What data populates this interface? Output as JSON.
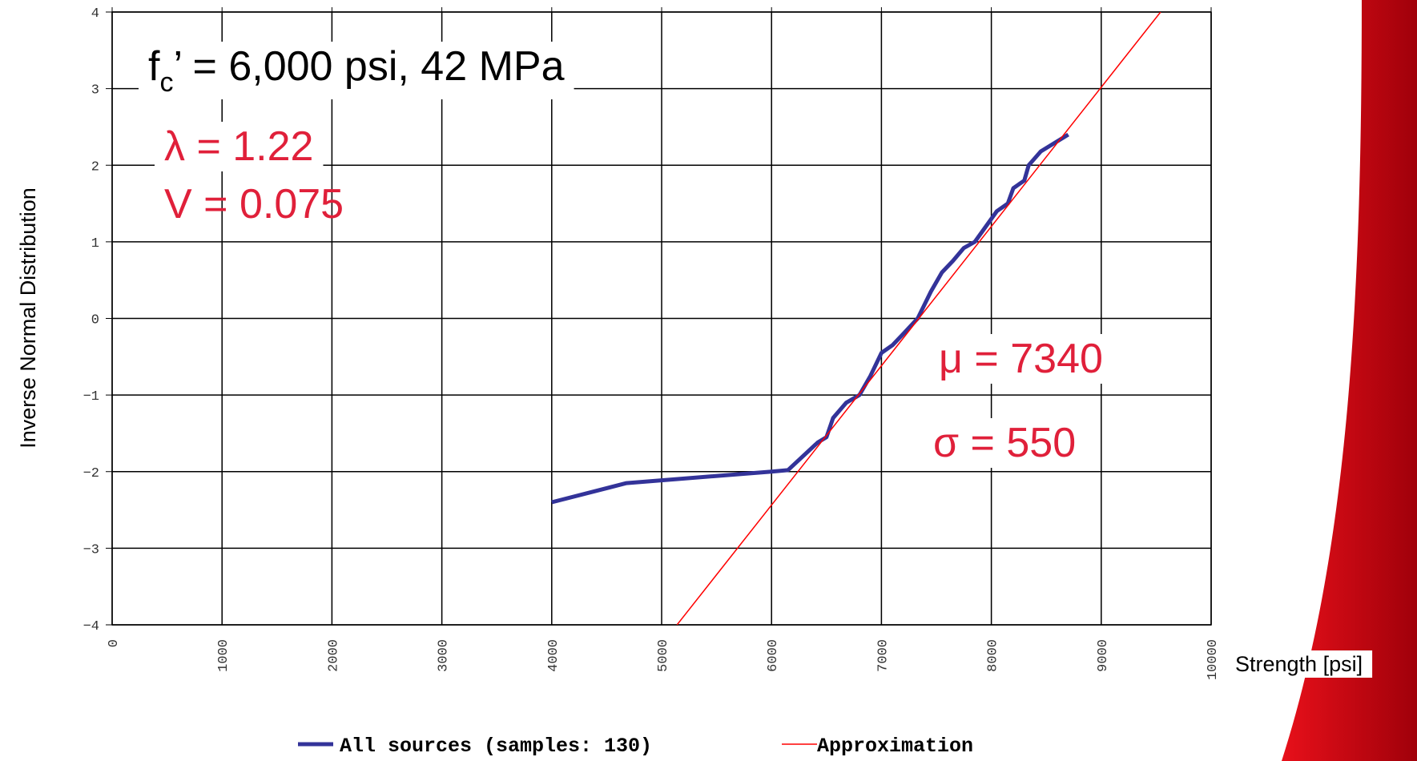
{
  "chart_data": {
    "type": "line",
    "x_label": "Strength [psi]",
    "y_label": "Inverse Normal Distribution",
    "xlim": [
      0,
      10000
    ],
    "ylim": [
      -4,
      4
    ],
    "xticks": [
      0,
      1000,
      2000,
      3000,
      4000,
      5000,
      6000,
      7000,
      8000,
      9000,
      10000
    ],
    "yticks": [
      {
        "value": -4,
        "label": "−4"
      },
      {
        "value": -3,
        "label": "−3"
      },
      {
        "value": -2,
        "label": "−2"
      },
      {
        "value": -1,
        "label": "−1"
      },
      0,
      1,
      2,
      3,
      4
    ],
    "grid": true,
    "series": [
      {
        "name": "All sources (samples: 130)",
        "color": "#333399",
        "x": [
          4000,
          4680,
          6000,
          6150,
          6420,
          6500,
          6560,
          6680,
          6800,
          6900,
          7000,
          7100,
          7200,
          7330,
          7450,
          7550,
          7650,
          7750,
          7850,
          7950,
          8050,
          8150,
          8200,
          8300,
          8340,
          8450,
          8700
        ],
        "values": [
          -2.4,
          -2.15,
          -2.0,
          -1.98,
          -1.62,
          -1.55,
          -1.3,
          -1.1,
          -1.0,
          -0.75,
          -0.45,
          -0.35,
          -0.2,
          0,
          0.35,
          0.6,
          0.75,
          0.92,
          1.0,
          1.2,
          1.4,
          1.5,
          1.7,
          1.8,
          2.0,
          2.18,
          2.4
        ]
      },
      {
        "name": "Approximation",
        "color": "#ff0000",
        "x": [
          5140,
          9540
        ],
        "values": [
          -4,
          4
        ]
      }
    ],
    "annotations": [
      {
        "text": "f",
        "sub": "c",
        "rest": "’ = 6,000 psi, 42 MPa"
      },
      {
        "text": "λ = 1.22"
      },
      {
        "text": "V = 0.075"
      },
      {
        "text": "μ = 7340"
      },
      {
        "text": "σ = 550"
      }
    ]
  }
}
